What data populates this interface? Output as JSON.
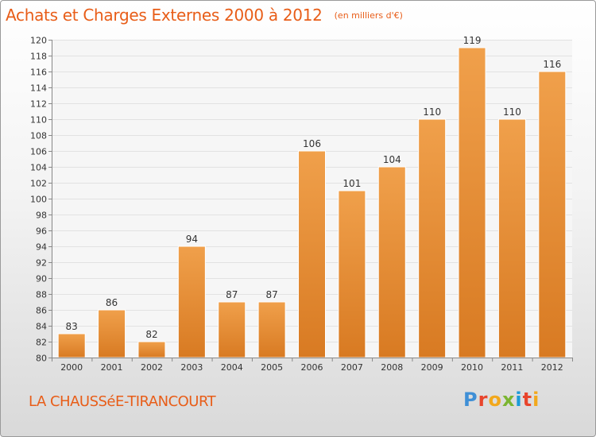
{
  "chart_data": {
    "type": "bar",
    "title": "Achats et Charges Externes 2000 à 2012",
    "unit": "(en milliers d'€)",
    "categories": [
      "2000",
      "2001",
      "2002",
      "2003",
      "2004",
      "2005",
      "2006",
      "2007",
      "2008",
      "2009",
      "2010",
      "2011",
      "2012"
    ],
    "values": [
      83,
      86,
      82,
      94,
      87,
      87,
      106,
      101,
      104,
      110,
      119,
      110,
      116
    ],
    "ylim": [
      80,
      120
    ],
    "ytick_step": 2,
    "grid": true,
    "bar_color": "#f0a04b",
    "bar_color_dark": "#d87a22"
  },
  "commune": "LA CHAUSSéE-TIRANCOURT",
  "brand": "Proxiti"
}
